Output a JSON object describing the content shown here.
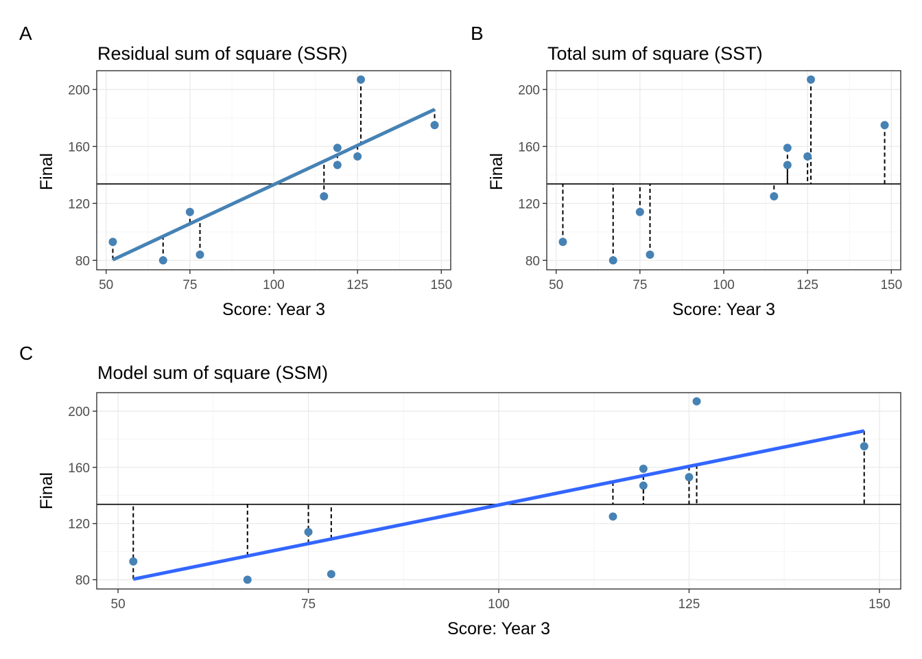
{
  "colors": {
    "point": "#4682b4",
    "fit_line_ab": "#4682b4",
    "fit_line_c": "#3366ff",
    "mean_line": "#000000",
    "residual": "#000000",
    "grid_major": "#ebebeb",
    "grid_minor": "#f5f5f5",
    "panel_border": "#333333"
  },
  "chart_data": [
    {
      "tag": "A",
      "type": "scatter",
      "title": "Residual sum of square (SSR)",
      "xlabel": "Score: Year 3",
      "ylabel": "Final",
      "xlim": [
        47.2,
        152.8
      ],
      "ylim": [
        73.4,
        213.2
      ],
      "xticks": [
        50,
        75,
        100,
        125,
        150
      ],
      "yticks": [
        80,
        120,
        160,
        200
      ],
      "grid": true,
      "points": [
        [
          52,
          93
        ],
        [
          67,
          80
        ],
        [
          75,
          114
        ],
        [
          78,
          84
        ],
        [
          115,
          125
        ],
        [
          119,
          147
        ],
        [
          119,
          159
        ],
        [
          125,
          153
        ],
        [
          126,
          207
        ],
        [
          148,
          175
        ]
      ],
      "fit_line": {
        "intercept": 23.2,
        "slope": 1.1,
        "x_range": [
          52,
          148
        ]
      },
      "mean_y": 133.7,
      "segments_to": "fit"
    },
    {
      "tag": "B",
      "type": "scatter",
      "title": "Total sum of square (SST)",
      "xlabel": "Score: Year 3",
      "ylabel": "Final",
      "xlim": [
        47.2,
        152.8
      ],
      "ylim": [
        73.4,
        213.2
      ],
      "xticks": [
        50,
        75,
        100,
        125,
        150
      ],
      "yticks": [
        80,
        120,
        160,
        200
      ],
      "grid": true,
      "points": [
        [
          52,
          93
        ],
        [
          67,
          80
        ],
        [
          75,
          114
        ],
        [
          78,
          84
        ],
        [
          115,
          125
        ],
        [
          119,
          147
        ],
        [
          119,
          159
        ],
        [
          125,
          153
        ],
        [
          126,
          207
        ],
        [
          148,
          175
        ]
      ],
      "fit_line": null,
      "mean_y": 133.7,
      "segments_to": "mean"
    },
    {
      "tag": "C",
      "type": "scatter",
      "title": "Model sum of square (SSM)",
      "xlabel": "Score: Year 3",
      "ylabel": "Final",
      "xlim": [
        47.2,
        152.8
      ],
      "ylim": [
        73.4,
        213.2
      ],
      "xticks": [
        50,
        75,
        100,
        125,
        150
      ],
      "yticks": [
        80,
        120,
        160,
        200
      ],
      "grid": true,
      "points": [
        [
          52,
          93
        ],
        [
          67,
          80
        ],
        [
          75,
          114
        ],
        [
          78,
          84
        ],
        [
          115,
          125
        ],
        [
          119,
          147
        ],
        [
          119,
          159
        ],
        [
          125,
          153
        ],
        [
          126,
          207
        ],
        [
          148,
          175
        ]
      ],
      "fit_line": {
        "intercept": 23.2,
        "slope": 1.1,
        "x_range": [
          52,
          148
        ]
      },
      "mean_y": 133.7,
      "segments_to": "fit-mean"
    }
  ]
}
